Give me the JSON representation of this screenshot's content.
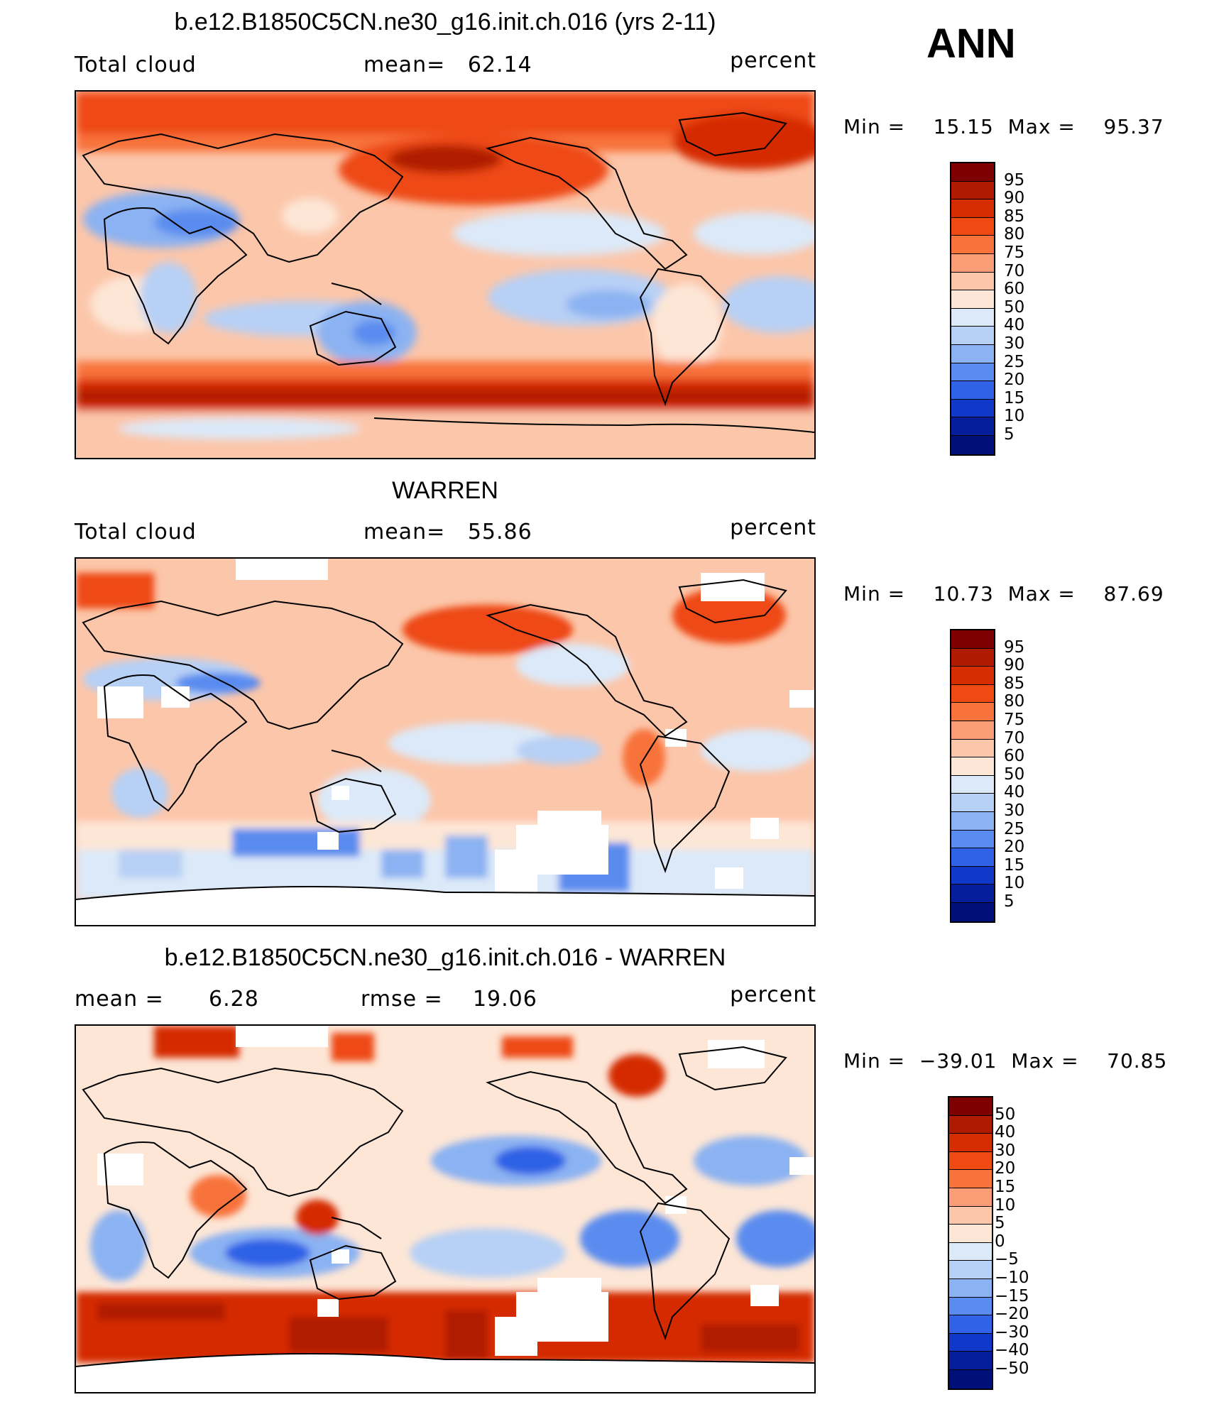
{
  "season": "ANN",
  "panels": [
    {
      "title": "b.e12.B1850C5CN.ne30_g16.init.ch.016 (yrs 2-11)",
      "left_label": "Total cloud",
      "center_label": "mean=",
      "center_value": "62.14",
      "units": "percent",
      "min_label": "Min =",
      "min_value": "15.15",
      "max_label": "Max =",
      "max_value": "95.37",
      "colorbar_labels": [
        "95",
        "90",
        "85",
        "80",
        "75",
        "70",
        "60",
        "50",
        "40",
        "30",
        "25",
        "20",
        "15",
        "10",
        "5"
      ]
    },
    {
      "title": "WARREN",
      "left_label": "Total cloud",
      "center_label": "mean=",
      "center_value": "55.86",
      "units": "percent",
      "min_label": "Min =",
      "min_value": "10.73",
      "max_label": "Max =",
      "max_value": "87.69",
      "colorbar_labels": [
        "95",
        "90",
        "85",
        "80",
        "75",
        "70",
        "60",
        "50",
        "40",
        "30",
        "25",
        "20",
        "15",
        "10",
        "5"
      ]
    },
    {
      "title": "b.e12.B1850C5CN.ne30_g16.init.ch.016 - WARREN",
      "left_label": "mean =",
      "left_value": "6.28",
      "center_label": "rmse =",
      "center_value": "19.06",
      "units": "percent",
      "min_label": "Min =",
      "min_value": "−39.01",
      "max_label": "Max =",
      "max_value": "70.85",
      "colorbar_labels": [
        "50",
        "40",
        "30",
        "20",
        "15",
        "10",
        "5",
        "0",
        "−5",
        "−10",
        "−15",
        "−20",
        "−30",
        "−40",
        "−50"
      ]
    }
  ],
  "colors": {
    "scale": [
      "#7f0000",
      "#b01a00",
      "#d52c00",
      "#ee4a12",
      "#f8723b",
      "#fb9e78",
      "#fcc6aa",
      "#fde6d6",
      "#dce9f8",
      "#b7d0f5",
      "#8bb2f2",
      "#5a8cef",
      "#2f62e6",
      "#1038c9",
      "#061e9c",
      "#00107a"
    ],
    "land_outline": "#000000",
    "missing": "#ffffff"
  }
}
